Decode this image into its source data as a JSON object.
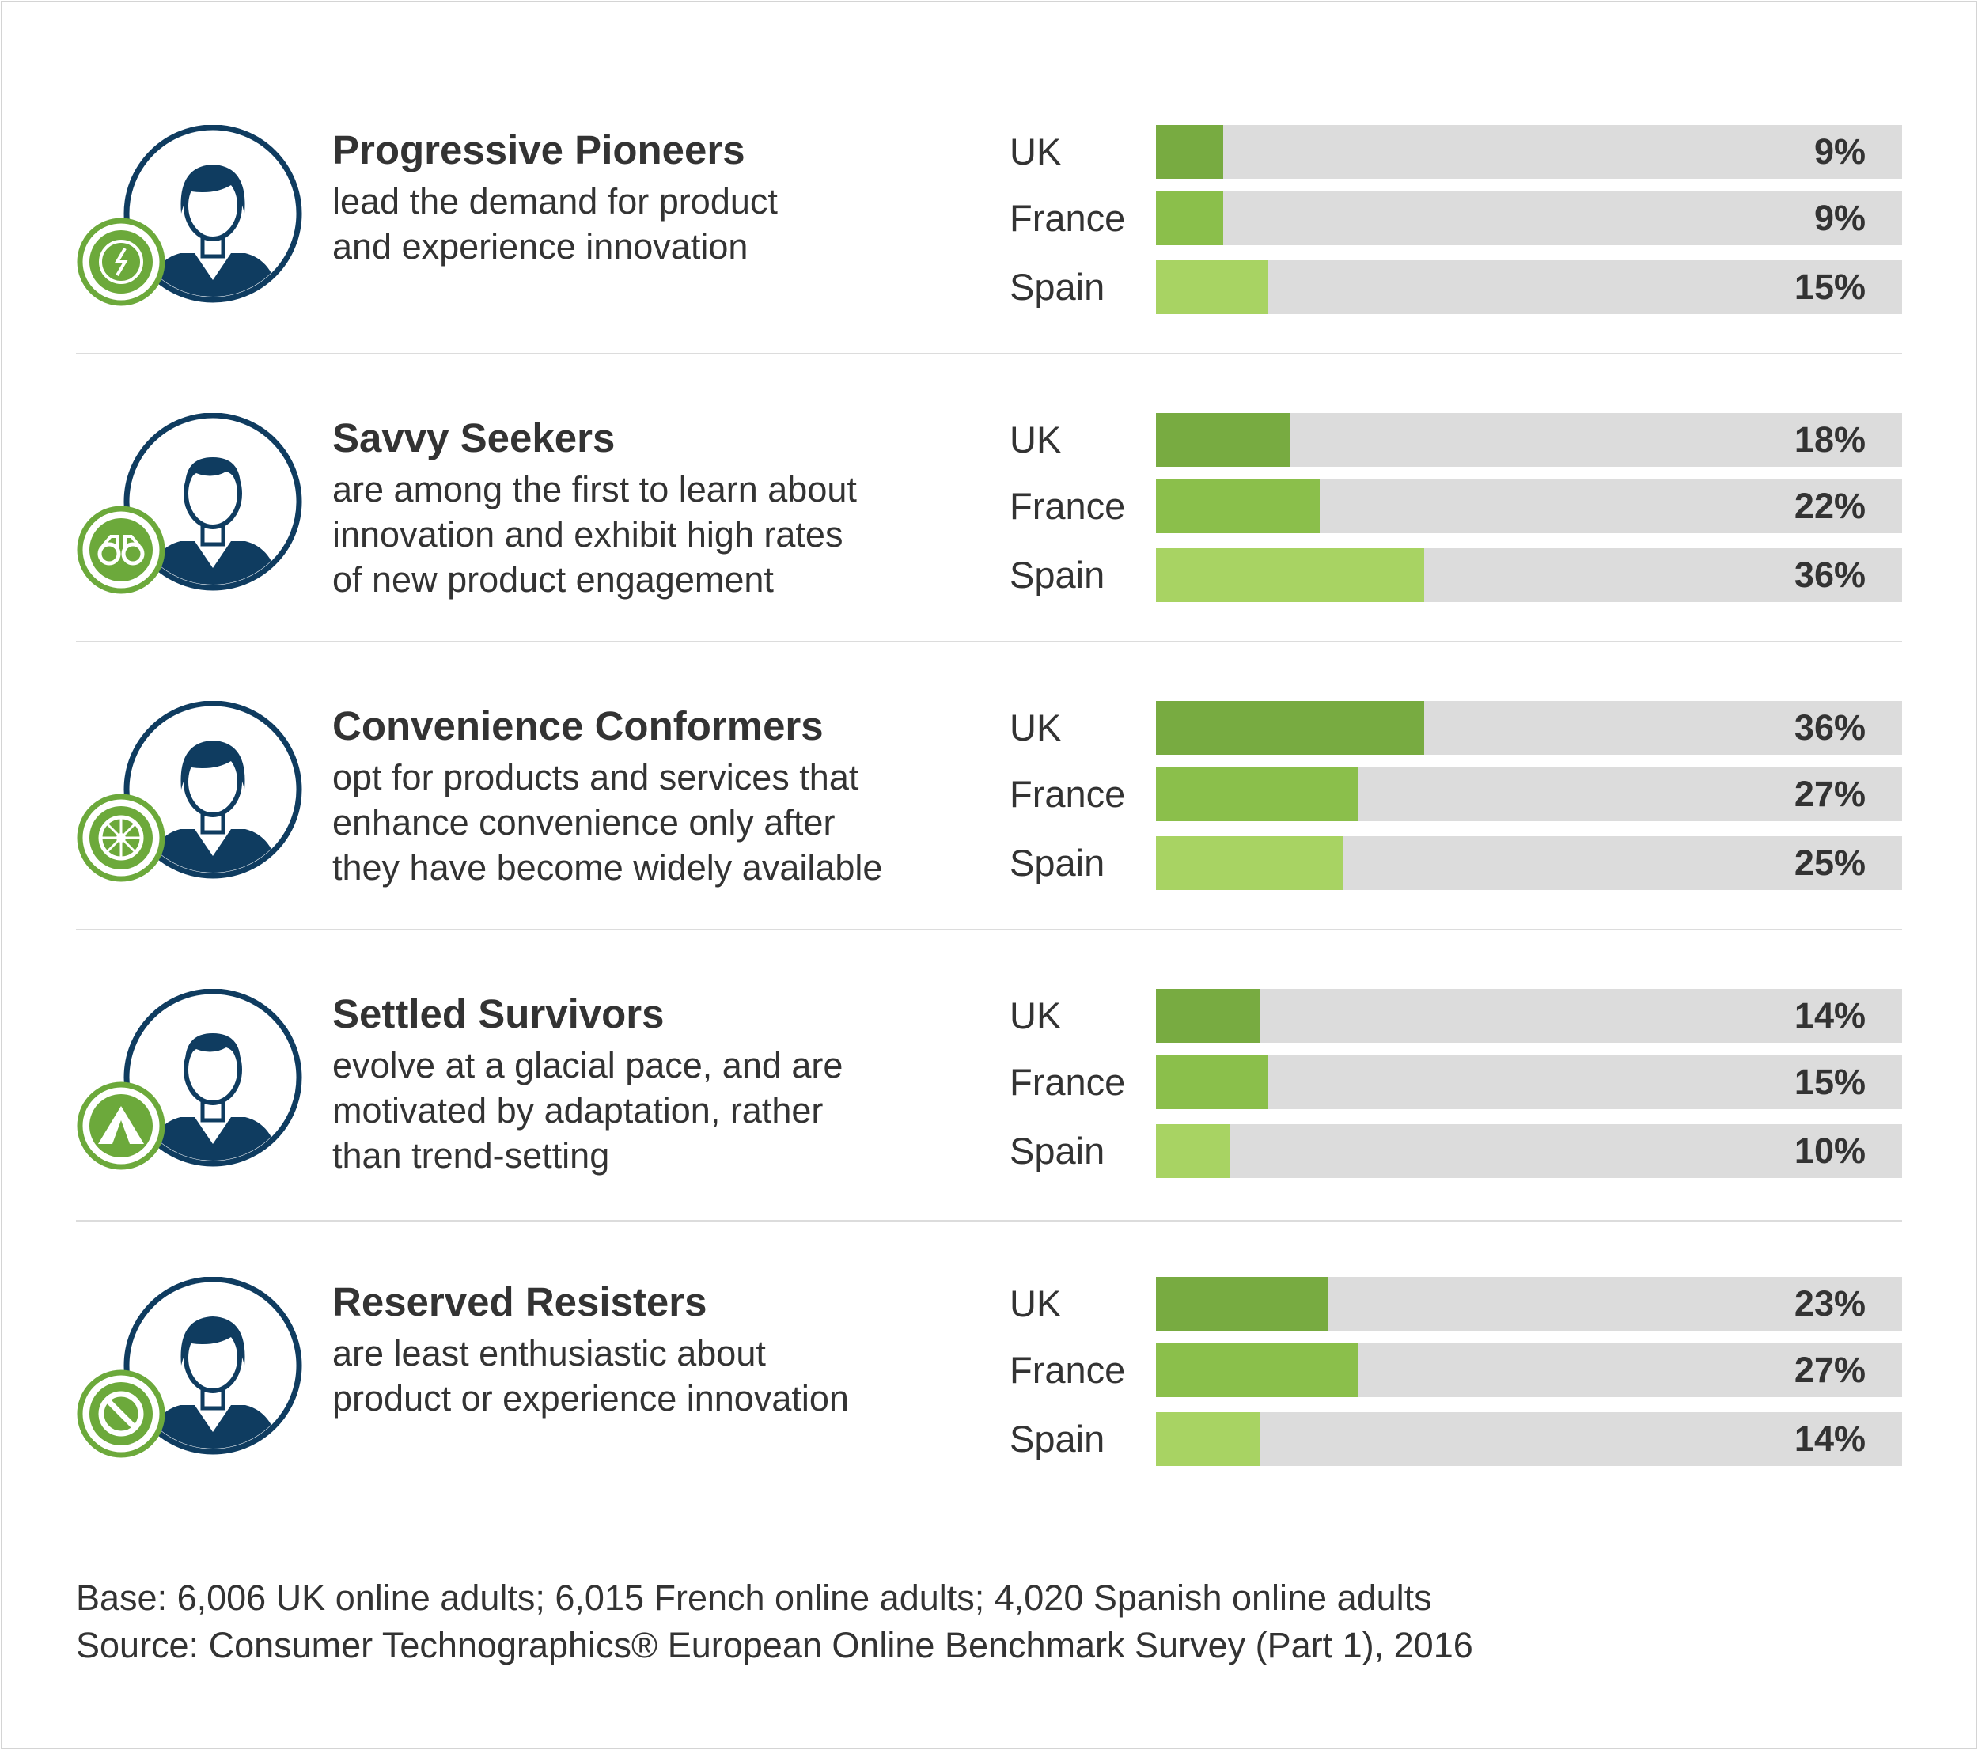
{
  "colors": {
    "uk": "#78ab41",
    "france": "#8bbf4b",
    "spain": "#a8d363",
    "track": "#dcdcdc",
    "navy": "#0f3c60",
    "badge": "#6ca93b"
  },
  "chart_data": {
    "type": "bar",
    "orientation": "horizontal",
    "categories": [
      "UK",
      "France",
      "Spain"
    ],
    "xlim": [
      0,
      100
    ],
    "value_suffix": "%",
    "segments": [
      {
        "name": "Progressive Pioneers",
        "description_lines": [
          "lead the demand for product",
          "and experience innovation"
        ],
        "icon": "compass-icon",
        "avatar": "woman-avatar-icon",
        "values": [
          9,
          9,
          15
        ],
        "labels": [
          "9%",
          "9%",
          "15%"
        ]
      },
      {
        "name": "Savvy Seekers",
        "description_lines": [
          "are among the first to learn about",
          "innovation and exhibit high rates",
          "of new product engagement"
        ],
        "icon": "binoculars-icon",
        "avatar": "man-avatar-icon",
        "values": [
          18,
          22,
          36
        ],
        "labels": [
          "18%",
          "22%",
          "36%"
        ]
      },
      {
        "name": "Convenience Conformers",
        "description_lines": [
          "opt for products and services that",
          "enhance convenience only after",
          "they have become widely available"
        ],
        "icon": "steering-wheel-icon",
        "avatar": "woman-avatar-icon",
        "values": [
          36,
          27,
          25
        ],
        "labels": [
          "36%",
          "27%",
          "25%"
        ]
      },
      {
        "name": "Settled Survivors",
        "description_lines": [
          "evolve at a glacial pace, and are",
          "motivated by adaptation, rather",
          "than trend-setting"
        ],
        "icon": "tent-icon",
        "avatar": "man-avatar-icon",
        "values": [
          14,
          15,
          10
        ],
        "labels": [
          "14%",
          "15%",
          "10%"
        ]
      },
      {
        "name": "Reserved Resisters",
        "description_lines": [
          "are least enthusiastic about",
          "product or experience innovation"
        ],
        "icon": "no-entry-icon",
        "avatar": "woman-avatar-icon",
        "values": [
          23,
          27,
          14
        ],
        "labels": [
          "23%",
          "27%",
          "14%"
        ]
      }
    ]
  },
  "footer": {
    "base": "Base: 6,006 UK online adults; 6,015 French online adults; 4,020 Spanish online adults",
    "source": "Source: Consumer Technographics® European Online Benchmark Survey (Part 1), 2016"
  }
}
